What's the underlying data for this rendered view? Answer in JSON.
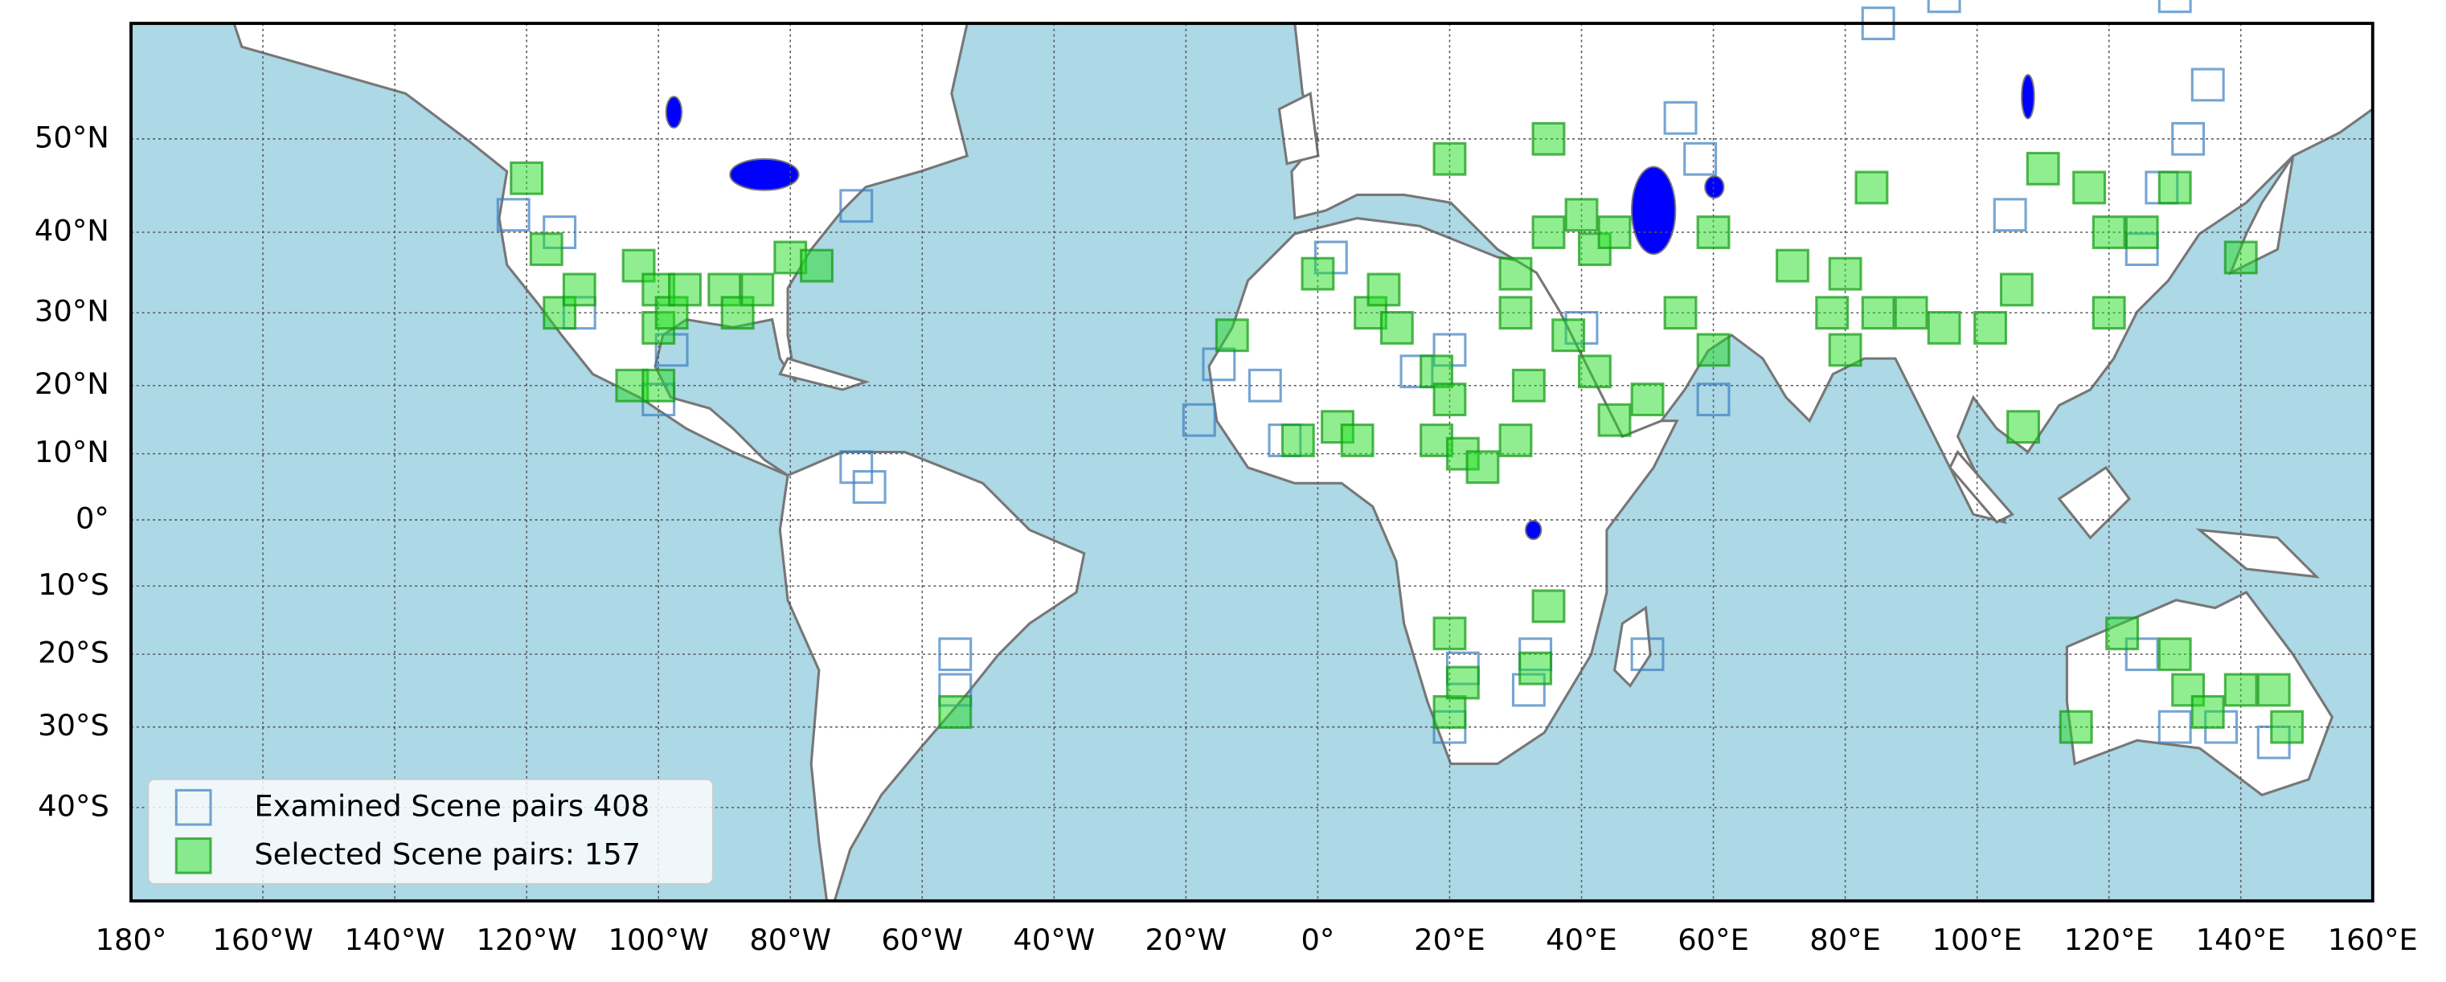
{
  "map": {
    "xlim": [
      -180,
      160
    ],
    "ylim": [
      -50,
      60
    ],
    "projection": "mercator",
    "grid": true,
    "ocean_color": "#add8e6",
    "xticks": [
      {
        "value": -180,
        "label": "180°"
      },
      {
        "value": -160,
        "label": "160°W"
      },
      {
        "value": -140,
        "label": "140°W"
      },
      {
        "value": -120,
        "label": "120°W"
      },
      {
        "value": -100,
        "label": "100°W"
      },
      {
        "value": -80,
        "label": "80°W"
      },
      {
        "value": -60,
        "label": "60°W"
      },
      {
        "value": -40,
        "label": "40°W"
      },
      {
        "value": -20,
        "label": "20°W"
      },
      {
        "value": 0,
        "label": "0°"
      },
      {
        "value": 20,
        "label": "20°E"
      },
      {
        "value": 40,
        "label": "40°E"
      },
      {
        "value": 60,
        "label": "60°E"
      },
      {
        "value": 80,
        "label": "80°E"
      },
      {
        "value": 100,
        "label": "100°E"
      },
      {
        "value": 120,
        "label": "120°E"
      },
      {
        "value": 140,
        "label": "140°E"
      },
      {
        "value": 160,
        "label": "160°E"
      }
    ],
    "yticks": [
      {
        "value": 50,
        "label": "50°N"
      },
      {
        "value": 40,
        "label": "40°N"
      },
      {
        "value": 30,
        "label": "30°N"
      },
      {
        "value": 20,
        "label": "20°N"
      },
      {
        "value": 10,
        "label": "10°N"
      },
      {
        "value": 0,
        "label": "0°"
      },
      {
        "value": -10,
        "label": "10°S"
      },
      {
        "value": -20,
        "label": "20°S"
      },
      {
        "value": -30,
        "label": "30°S"
      },
      {
        "value": -40,
        "label": "40°S"
      }
    ],
    "legend": "lower left",
    "series": [
      {
        "name": "Examined Scene pairs 408",
        "color": "#3a7fc0",
        "fill": false,
        "points": [
          [
            -122,
            42
          ],
          [
            -115,
            40
          ],
          [
            -112,
            30
          ],
          [
            -100,
            18
          ],
          [
            -98,
            25
          ],
          [
            -70,
            43
          ],
          [
            -70,
            8
          ],
          [
            -68,
            5
          ],
          [
            -55,
            -20
          ],
          [
            -55,
            -25
          ],
          [
            -18,
            15
          ],
          [
            -15,
            23
          ],
          [
            -8,
            20
          ],
          [
            -5,
            12
          ],
          [
            2,
            37
          ],
          [
            15,
            22
          ],
          [
            20,
            25
          ],
          [
            40,
            28
          ],
          [
            55,
            52
          ],
          [
            58,
            48
          ],
          [
            60,
            18
          ],
          [
            105,
            42
          ],
          [
            125,
            -20
          ],
          [
            130,
            -30
          ],
          [
            137,
            -30
          ],
          [
            145,
            -32
          ],
          [
            20,
            -30
          ],
          [
            22,
            -22
          ],
          [
            32,
            -25
          ],
          [
            50,
            -20
          ],
          [
            85,
            60
          ],
          [
            95,
            62
          ],
          [
            130,
            62
          ],
          [
            135,
            55
          ],
          [
            132,
            50
          ],
          [
            128,
            45
          ],
          [
            125,
            38
          ],
          [
            33,
            -20
          ]
        ]
      },
      {
        "name": "Selected Scene pairs: 157",
        "color": "#22dd22",
        "fill": true,
        "points": [
          [
            -120,
            46
          ],
          [
            -117,
            38
          ],
          [
            -115,
            30
          ],
          [
            -112,
            33
          ],
          [
            -103,
            36
          ],
          [
            -100,
            33
          ],
          [
            -100,
            28
          ],
          [
            -98,
            30
          ],
          [
            -96,
            33
          ],
          [
            -104,
            20
          ],
          [
            -100,
            20
          ],
          [
            -90,
            33
          ],
          [
            -88,
            30
          ],
          [
            -85,
            33
          ],
          [
            -80,
            37
          ],
          [
            -76,
            36
          ],
          [
            -13,
            27
          ],
          [
            0,
            35
          ],
          [
            8,
            30
          ],
          [
            10,
            33
          ],
          [
            12,
            28
          ],
          [
            3,
            14
          ],
          [
            -3,
            12
          ],
          [
            6,
            12
          ],
          [
            18,
            22
          ],
          [
            20,
            18
          ],
          [
            18,
            12
          ],
          [
            22,
            10
          ],
          [
            25,
            8
          ],
          [
            30,
            12
          ],
          [
            32,
            20
          ],
          [
            35,
            40
          ],
          [
            40,
            42
          ],
          [
            42,
            38
          ],
          [
            30,
            35
          ],
          [
            30,
            30
          ],
          [
            38,
            27
          ],
          [
            42,
            22
          ],
          [
            45,
            15
          ],
          [
            50,
            18
          ],
          [
            55,
            30
          ],
          [
            60,
            25
          ],
          [
            60,
            40
          ],
          [
            72,
            36
          ],
          [
            78,
            30
          ],
          [
            80,
            35
          ],
          [
            80,
            25
          ],
          [
            85,
            30
          ],
          [
            90,
            30
          ],
          [
            95,
            28
          ],
          [
            102,
            28
          ],
          [
            106,
            33
          ],
          [
            110,
            47
          ],
          [
            117,
            45
          ],
          [
            120,
            40
          ],
          [
            120,
            30
          ],
          [
            107,
            14
          ],
          [
            122,
            -17
          ],
          [
            130,
            -20
          ],
          [
            132,
            -25
          ],
          [
            135,
            -28
          ],
          [
            140,
            -25
          ],
          [
            145,
            -25
          ],
          [
            147,
            -30
          ],
          [
            115,
            -30
          ],
          [
            33,
            -22
          ],
          [
            35,
            -13
          ],
          [
            20,
            -28
          ],
          [
            22,
            -24
          ],
          [
            20,
            -17
          ],
          [
            -55,
            -28
          ],
          [
            20,
            48
          ],
          [
            35,
            50
          ],
          [
            45,
            40
          ],
          [
            84,
            45
          ],
          [
            125,
            40
          ],
          [
            140,
            37
          ],
          [
            130,
            45
          ]
        ]
      }
    ]
  }
}
